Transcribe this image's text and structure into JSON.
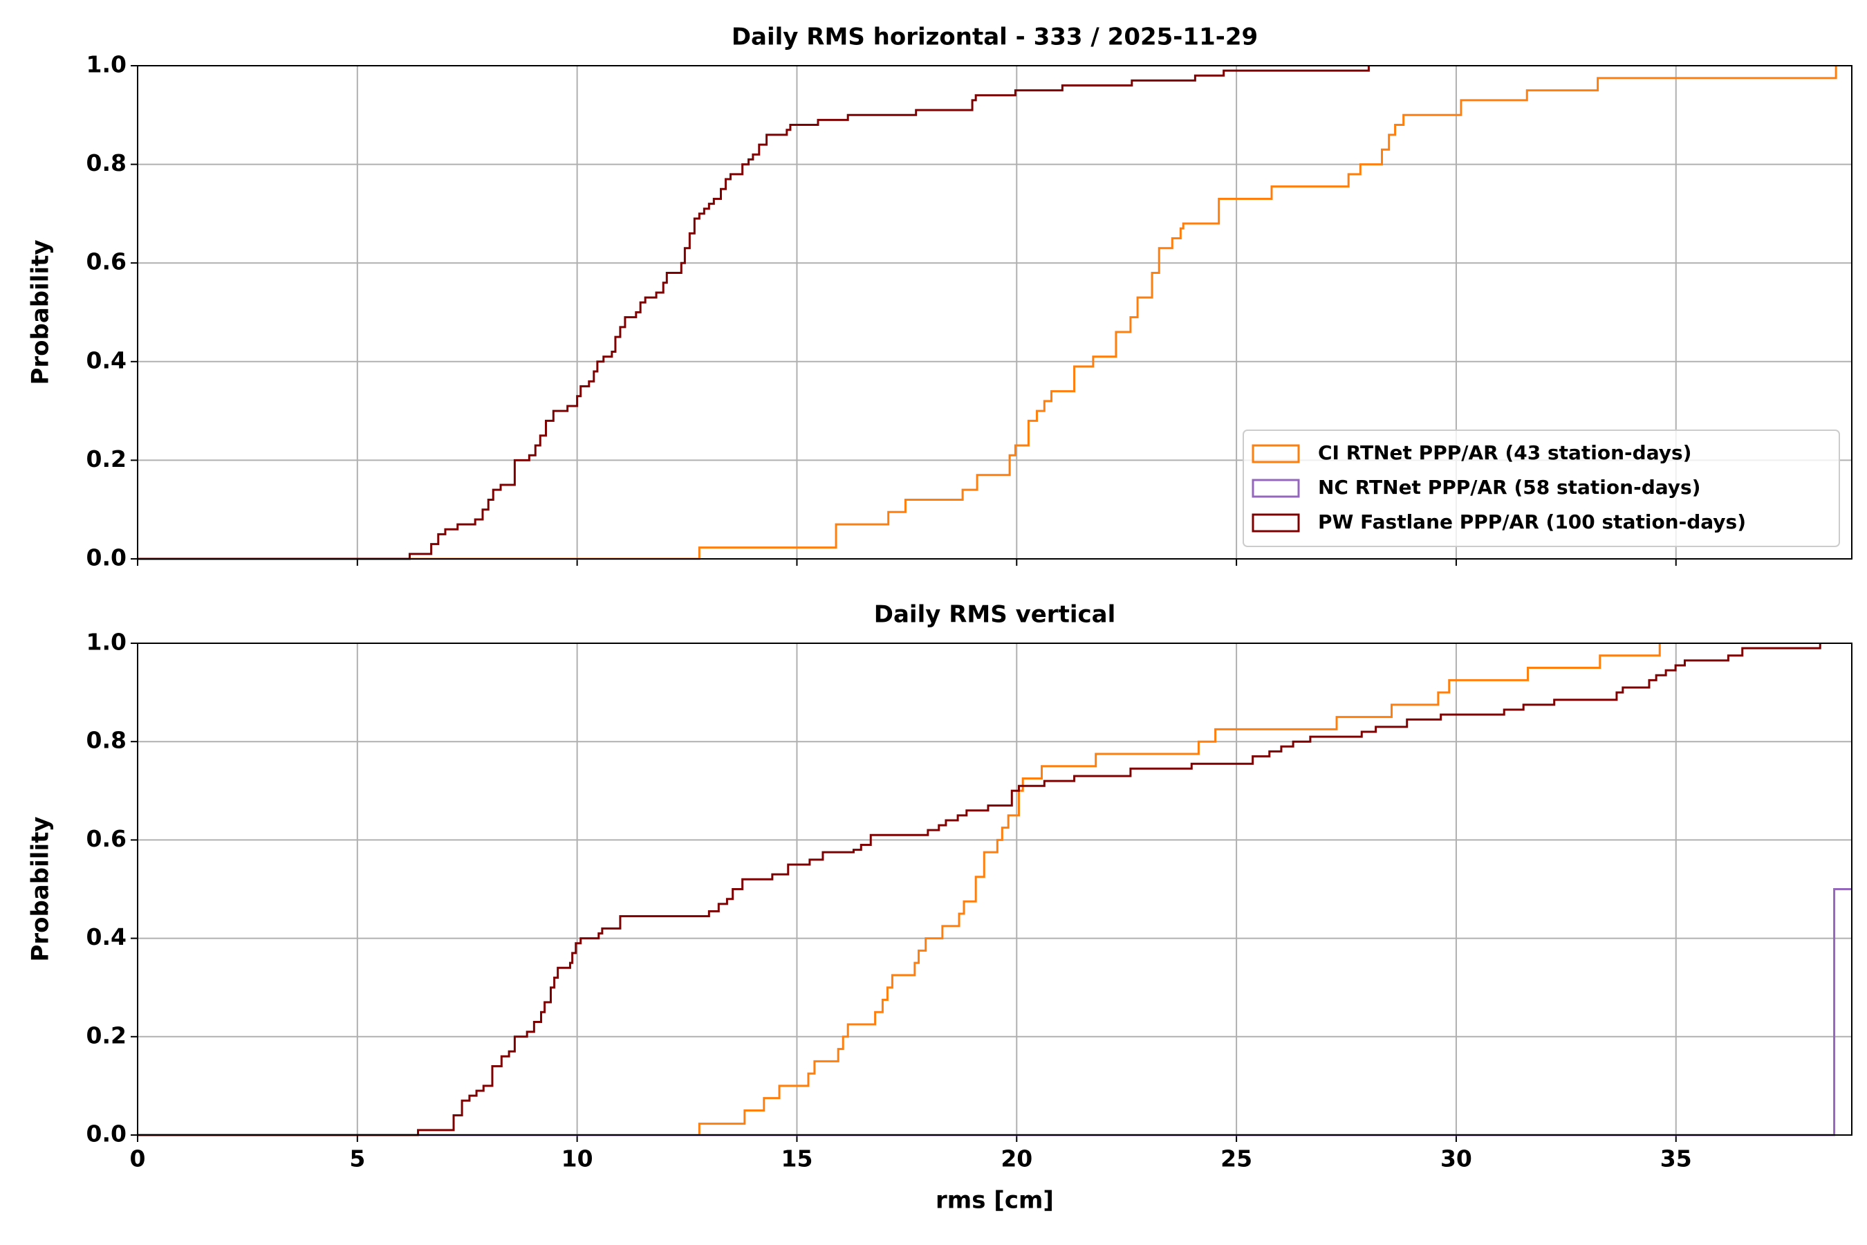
{
  "chart_data": [
    {
      "type": "step",
      "title": "Daily RMS horizontal - 333  / 2025-11-29",
      "y_label": "Probability",
      "xlim": [
        0,
        39
      ],
      "ylim": [
        0,
        1
      ],
      "xticks": [
        0,
        5,
        10,
        15,
        20,
        25,
        30,
        35
      ],
      "yticks": [
        {
          "value": 0,
          "label": "0.0"
        },
        0.2,
        0.4,
        0.6,
        0.8,
        {
          "value": 1,
          "label": "1.0"
        }
      ],
      "show_xtick_labels": false,
      "grid": true,
      "legend": "lower right",
      "series": [
        {
          "name": "CI RTNet PPP/AR (43 station-days)",
          "color": "#ff7f0e",
          "x": [
            12.78,
            15.89,
            17.08,
            17.47,
            18.77,
            19.1,
            19.84,
            19.97,
            20.27,
            20.46,
            20.63,
            20.79,
            21.31,
            21.74,
            22.26,
            22.59,
            22.75,
            23.08,
            23.24,
            23.54,
            23.73,
            23.79,
            24.6,
            25.8,
            27.55,
            27.82,
            28.31,
            28.47,
            28.61,
            28.8,
            30.11,
            31.61,
            33.22,
            38.64
          ],
          "values": [
            0.023,
            0.07,
            0.095,
            0.12,
            0.14,
            0.17,
            0.21,
            0.23,
            0.28,
            0.3,
            0.32,
            0.34,
            0.39,
            0.41,
            0.46,
            0.49,
            0.53,
            0.58,
            0.63,
            0.65,
            0.67,
            0.68,
            0.73,
            0.755,
            0.78,
            0.8,
            0.83,
            0.86,
            0.88,
            0.9,
            0.93,
            0.95,
            0.975,
            1.0
          ]
        },
        {
          "name": "NC RTNet PPP/AR (58 station-days)",
          "color": "#9467bd",
          "x": [],
          "values": []
        },
        {
          "name": "PW Fastlane PPP/AR (100 station-days)",
          "color": "#7f0000",
          "x": [
            6.19,
            6.68,
            6.84,
            7.0,
            7.28,
            7.68,
            7.85,
            7.98,
            8.09,
            8.26,
            8.58,
            8.91,
            9.05,
            9.16,
            9.29,
            9.46,
            9.78,
            10.0,
            10.08,
            10.27,
            10.38,
            10.46,
            10.6,
            10.79,
            10.87,
            10.98,
            11.09,
            11.34,
            11.44,
            11.55,
            11.8,
            11.96,
            12.04,
            12.37,
            12.45,
            12.56,
            12.67,
            12.78,
            12.89,
            13.0,
            13.11,
            13.27,
            13.38,
            13.49,
            13.76,
            13.9,
            14.0,
            14.14,
            14.31,
            14.77,
            14.85,
            15.48,
            16.16,
            17.71,
            18.99,
            19.07,
            19.97,
            21.04,
            22.62,
            24.06,
            24.71,
            28.01
          ],
          "values": [
            0.01,
            0.03,
            0.05,
            0.06,
            0.07,
            0.08,
            0.1,
            0.12,
            0.14,
            0.15,
            0.2,
            0.21,
            0.23,
            0.25,
            0.28,
            0.3,
            0.31,
            0.33,
            0.35,
            0.36,
            0.38,
            0.4,
            0.41,
            0.42,
            0.45,
            0.47,
            0.49,
            0.5,
            0.52,
            0.53,
            0.54,
            0.56,
            0.58,
            0.6,
            0.63,
            0.66,
            0.69,
            0.7,
            0.71,
            0.72,
            0.73,
            0.75,
            0.77,
            0.78,
            0.8,
            0.81,
            0.82,
            0.84,
            0.86,
            0.87,
            0.88,
            0.89,
            0.9,
            0.91,
            0.93,
            0.94,
            0.95,
            0.96,
            0.97,
            0.98,
            0.99,
            1.0
          ]
        }
      ]
    },
    {
      "type": "step",
      "title": "Daily RMS vertical",
      "x_label": "rms [cm]",
      "y_label": "Probability",
      "xlim": [
        0,
        39
      ],
      "ylim": [
        0,
        1
      ],
      "xticks": [
        0,
        5,
        10,
        15,
        20,
        25,
        30,
        35
      ],
      "yticks": [
        {
          "value": 0,
          "label": "0.0"
        },
        0.2,
        0.4,
        0.6,
        0.8,
        {
          "value": 1,
          "label": "1.0"
        }
      ],
      "show_xtick_labels": true,
      "grid": true,
      "series": [
        {
          "color": "#ff7f0e",
          "x": [
            12.78,
            13.81,
            14.25,
            14.6,
            15.26,
            15.4,
            15.94,
            16.05,
            16.16,
            16.78,
            16.95,
            17.06,
            17.17,
            17.68,
            17.77,
            17.93,
            18.31,
            18.69,
            18.8,
            19.07,
            19.26,
            19.56,
            19.67,
            19.81,
            20.05,
            20.14,
            20.57,
            21.8,
            24.14,
            24.52,
            27.28,
            28.53,
            29.59,
            29.84,
            31.63,
            33.27,
            34.63
          ],
          "values": [
            0.023,
            0.05,
            0.075,
            0.1,
            0.125,
            0.15,
            0.175,
            0.2,
            0.225,
            0.25,
            0.275,
            0.3,
            0.325,
            0.35,
            0.375,
            0.4,
            0.425,
            0.45,
            0.475,
            0.525,
            0.575,
            0.6,
            0.625,
            0.65,
            0.7,
            0.725,
            0.75,
            0.775,
            0.8,
            0.825,
            0.85,
            0.875,
            0.9,
            0.925,
            0.95,
            0.975,
            1.0
          ]
        },
        {
          "color": "#9467bd",
          "x": [
            38.6
          ],
          "values": [
            0.5
          ]
        },
        {
          "color": "#7f0000",
          "x": [
            6.38,
            7.19,
            7.38,
            7.55,
            7.71,
            7.87,
            8.07,
            8.28,
            8.45,
            8.58,
            8.86,
            9.02,
            9.18,
            9.26,
            9.4,
            9.48,
            9.56,
            9.84,
            9.89,
            9.97,
            10.08,
            10.49,
            10.57,
            10.98,
            13.0,
            13.22,
            13.41,
            13.54,
            13.76,
            14.44,
            14.8,
            15.29,
            15.59,
            16.29,
            16.46,
            16.68,
            17.98,
            18.23,
            18.39,
            18.66,
            18.86,
            19.35,
            19.89,
            20.05,
            20.63,
            21.31,
            22.59,
            23.98,
            25.37,
            25.75,
            26.02,
            26.29,
            26.68,
            27.85,
            28.17,
            28.88,
            29.65,
            31.09,
            31.53,
            32.23,
            33.65,
            33.79,
            34.39,
            34.55,
            34.77,
            34.99,
            35.2,
            36.19,
            36.51,
            38.28
          ],
          "values": [
            0.01,
            0.04,
            0.07,
            0.08,
            0.09,
            0.1,
            0.14,
            0.16,
            0.17,
            0.2,
            0.21,
            0.23,
            0.25,
            0.27,
            0.3,
            0.32,
            0.34,
            0.35,
            0.37,
            0.39,
            0.4,
            0.41,
            0.42,
            0.445,
            0.455,
            0.47,
            0.48,
            0.5,
            0.52,
            0.53,
            0.55,
            0.56,
            0.575,
            0.58,
            0.59,
            0.61,
            0.62,
            0.63,
            0.64,
            0.65,
            0.66,
            0.67,
            0.7,
            0.71,
            0.72,
            0.73,
            0.745,
            0.755,
            0.77,
            0.78,
            0.79,
            0.8,
            0.81,
            0.82,
            0.83,
            0.845,
            0.855,
            0.865,
            0.875,
            0.885,
            0.9,
            0.91,
            0.925,
            0.935,
            0.945,
            0.955,
            0.965,
            0.975,
            0.99,
            1.0
          ]
        }
      ]
    }
  ]
}
